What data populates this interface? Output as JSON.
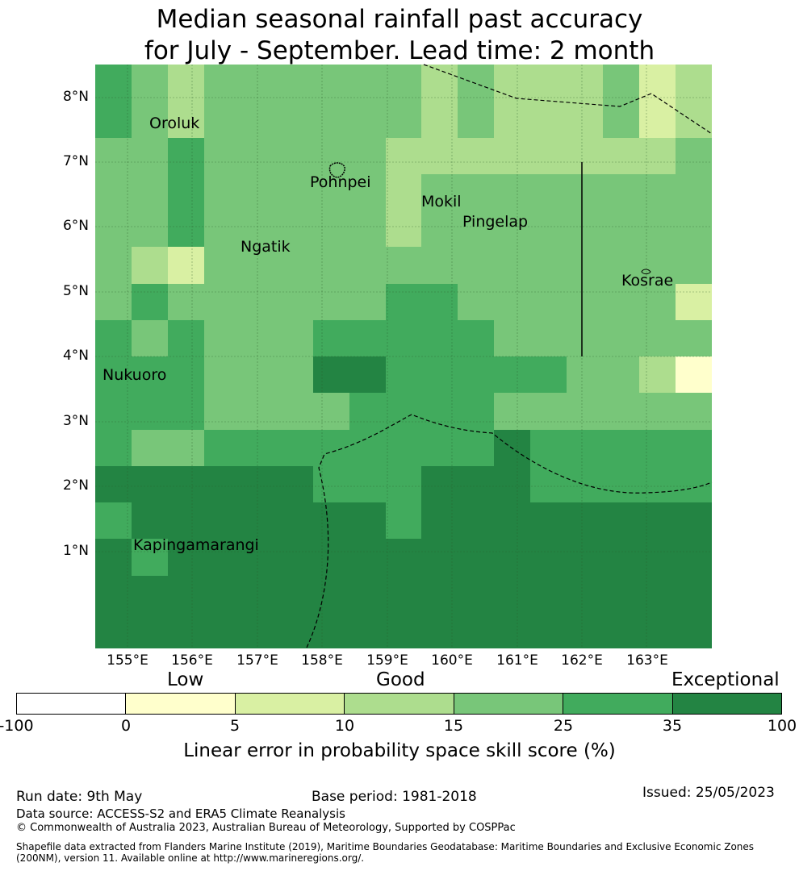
{
  "title": {
    "line1": "Median seasonal rainfall past accuracy",
    "line2": "for July - September. Lead time: 2 month"
  },
  "map": {
    "latitude_labels": [
      "8°N",
      "7°N",
      "6°N",
      "5°N",
      "4°N",
      "3°N",
      "2°N",
      "1°N"
    ],
    "longitude_labels": [
      "155°E",
      "156°E",
      "157°E",
      "158°E",
      "159°E",
      "160°E",
      "161°E",
      "162°E",
      "163°E"
    ],
    "places": [
      "Oroluk",
      "Pohnpei",
      "Mokil",
      "Pingelap",
      "Ngatik",
      "Kosrae",
      "Nukuoro",
      "Kapingamarangi"
    ],
    "skill_class_grid": [
      [
        5,
        4,
        3,
        4,
        4,
        4,
        4,
        4,
        4,
        3,
        4,
        3,
        3,
        3,
        4,
        2,
        3
      ],
      [
        5,
        4,
        3,
        4,
        4,
        4,
        4,
        4,
        4,
        3,
        4,
        3,
        3,
        3,
        4,
        2,
        3
      ],
      [
        4,
        4,
        5,
        4,
        4,
        4,
        4,
        4,
        3,
        3,
        3,
        3,
        3,
        3,
        3,
        3,
        4
      ],
      [
        4,
        4,
        5,
        4,
        4,
        4,
        4,
        4,
        3,
        4,
        4,
        4,
        4,
        4,
        4,
        4,
        4
      ],
      [
        4,
        4,
        5,
        4,
        4,
        4,
        4,
        4,
        3,
        4,
        4,
        4,
        4,
        4,
        4,
        4,
        4
      ],
      [
        4,
        3,
        2,
        4,
        4,
        4,
        4,
        4,
        4,
        4,
        4,
        4,
        4,
        4,
        4,
        4,
        4
      ],
      [
        4,
        5,
        4,
        4,
        4,
        4,
        4,
        4,
        5,
        5,
        4,
        4,
        4,
        4,
        4,
        4,
        2
      ],
      [
        5,
        4,
        5,
        4,
        4,
        4,
        5,
        5,
        5,
        5,
        5,
        4,
        4,
        4,
        4,
        4,
        4
      ],
      [
        5,
        5,
        5,
        4,
        4,
        4,
        6,
        6,
        5,
        5,
        5,
        5,
        5,
        4,
        4,
        3,
        1
      ],
      [
        5,
        5,
        5,
        4,
        4,
        4,
        4,
        5,
        5,
        5,
        5,
        4,
        4,
        4,
        4,
        4,
        4
      ],
      [
        5,
        4,
        4,
        5,
        5,
        5,
        5,
        5,
        5,
        5,
        5,
        6,
        5,
        5,
        5,
        5,
        5
      ],
      [
        6,
        6,
        6,
        6,
        6,
        6,
        5,
        5,
        5,
        6,
        6,
        6,
        5,
        5,
        5,
        5,
        5
      ],
      [
        5,
        6,
        6,
        6,
        6,
        6,
        6,
        6,
        5,
        6,
        6,
        6,
        6,
        6,
        6,
        6,
        6
      ],
      [
        6,
        5,
        6,
        6,
        6,
        6,
        6,
        6,
        6,
        6,
        6,
        6,
        6,
        6,
        6,
        6,
        6
      ],
      [
        6,
        6,
        6,
        6,
        6,
        6,
        6,
        6,
        6,
        6,
        6,
        6,
        6,
        6,
        6,
        6,
        6
      ],
      [
        6,
        6,
        6,
        6,
        6,
        6,
        6,
        6,
        6,
        6,
        6,
        6,
        6,
        6,
        6,
        6,
        6
      ]
    ]
  },
  "legend": {
    "low": "Low",
    "good": "Good",
    "exceptional": "Exceptional",
    "ticks": [
      "-100",
      "0",
      "5",
      "10",
      "15",
      "25",
      "35",
      "100"
    ],
    "colors": [
      "#ffffff",
      "#ffffcc",
      "#d9f0a3",
      "#addd8e",
      "#78c679",
      "#41ab5d",
      "#238443"
    ],
    "label": "Linear error in probability space skill score (%)"
  },
  "footer": {
    "run_date": "Run date: 9th May",
    "base_period": "Base period: 1981-2018",
    "issued": "Issued: 25/05/2023",
    "data_source": "Data source: ACCESS-S2 and ERA5 Climate Reanalysis",
    "copyright": "© Commonwealth of Australia 2023, Australian Bureau of Meteorology, Supported by COSPPac",
    "shapefile_line1": "Shapefile data extracted from Flanders Marine Institute (2019), Maritime Boundaries Geodatabase: Maritime Boundaries and Exclusive Economic Zones",
    "shapefile_line2": "(200NM), version 11. Available online at http://www.marineregions.org/."
  }
}
